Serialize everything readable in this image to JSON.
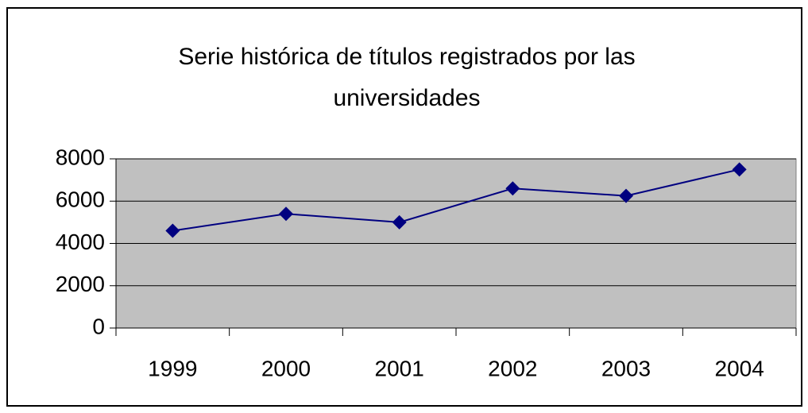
{
  "chart_data": {
    "type": "line",
    "title": "Serie histórica de títulos registrados por las universidades",
    "categories": [
      "1999",
      "2000",
      "2001",
      "2002",
      "2003",
      "2004"
    ],
    "series": [
      {
        "color": "#000080",
        "values": [
          4600,
          5400,
          5000,
          6600,
          6250,
          7500
        ]
      }
    ],
    "ylim": [
      0,
      8000
    ],
    "yticks": [
      0,
      2000,
      4000,
      6000,
      8000
    ],
    "grid": true,
    "plot_background": "#c0c0c0"
  }
}
